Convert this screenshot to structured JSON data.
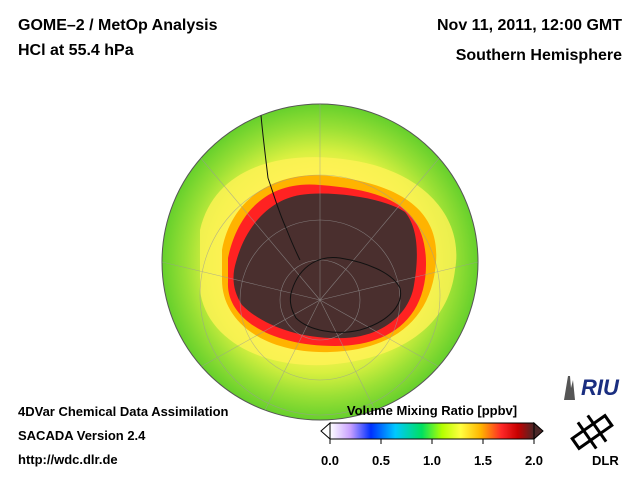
{
  "header": {
    "title_line1": "GOME–2 / MetOp Analysis",
    "title_line2": "HCl at 55.4 hPa",
    "date": "Nov 11, 2011, 12:00 GMT",
    "region": "Southern Hemisphere"
  },
  "footer": {
    "line1": "4DVar Chemical Data Assimilation",
    "line2": "SACADA Version 2.4",
    "line3": "http://wdc.dlr.de"
  },
  "colorbar": {
    "title": "Volume Mixing Ratio [ppbv]",
    "ticks": [
      "0.0",
      "0.5",
      "1.0",
      "1.5",
      "2.0"
    ],
    "tick_values": [
      0.0,
      0.5,
      1.0,
      1.5,
      2.0
    ],
    "range": [
      0.0,
      2.0
    ],
    "colors": [
      "#ffffff",
      "#c8a0ff",
      "#0030ff",
      "#00c8ff",
      "#00e060",
      "#b4ff00",
      "#ffff40",
      "#ffb400",
      "#ff2828",
      "#c80000",
      "#4a2828"
    ]
  },
  "logos": {
    "riu": "RIU",
    "dlr": "DLR"
  },
  "map": {
    "projection": "orthographic, south polar view",
    "colors": {
      "polar_vortex": "#4a2f2e",
      "edge_red": "#ff2020",
      "orange": "#ffb400",
      "yellow": "#fff050",
      "green": "#7ad62e",
      "space": "#ffffff"
    }
  }
}
